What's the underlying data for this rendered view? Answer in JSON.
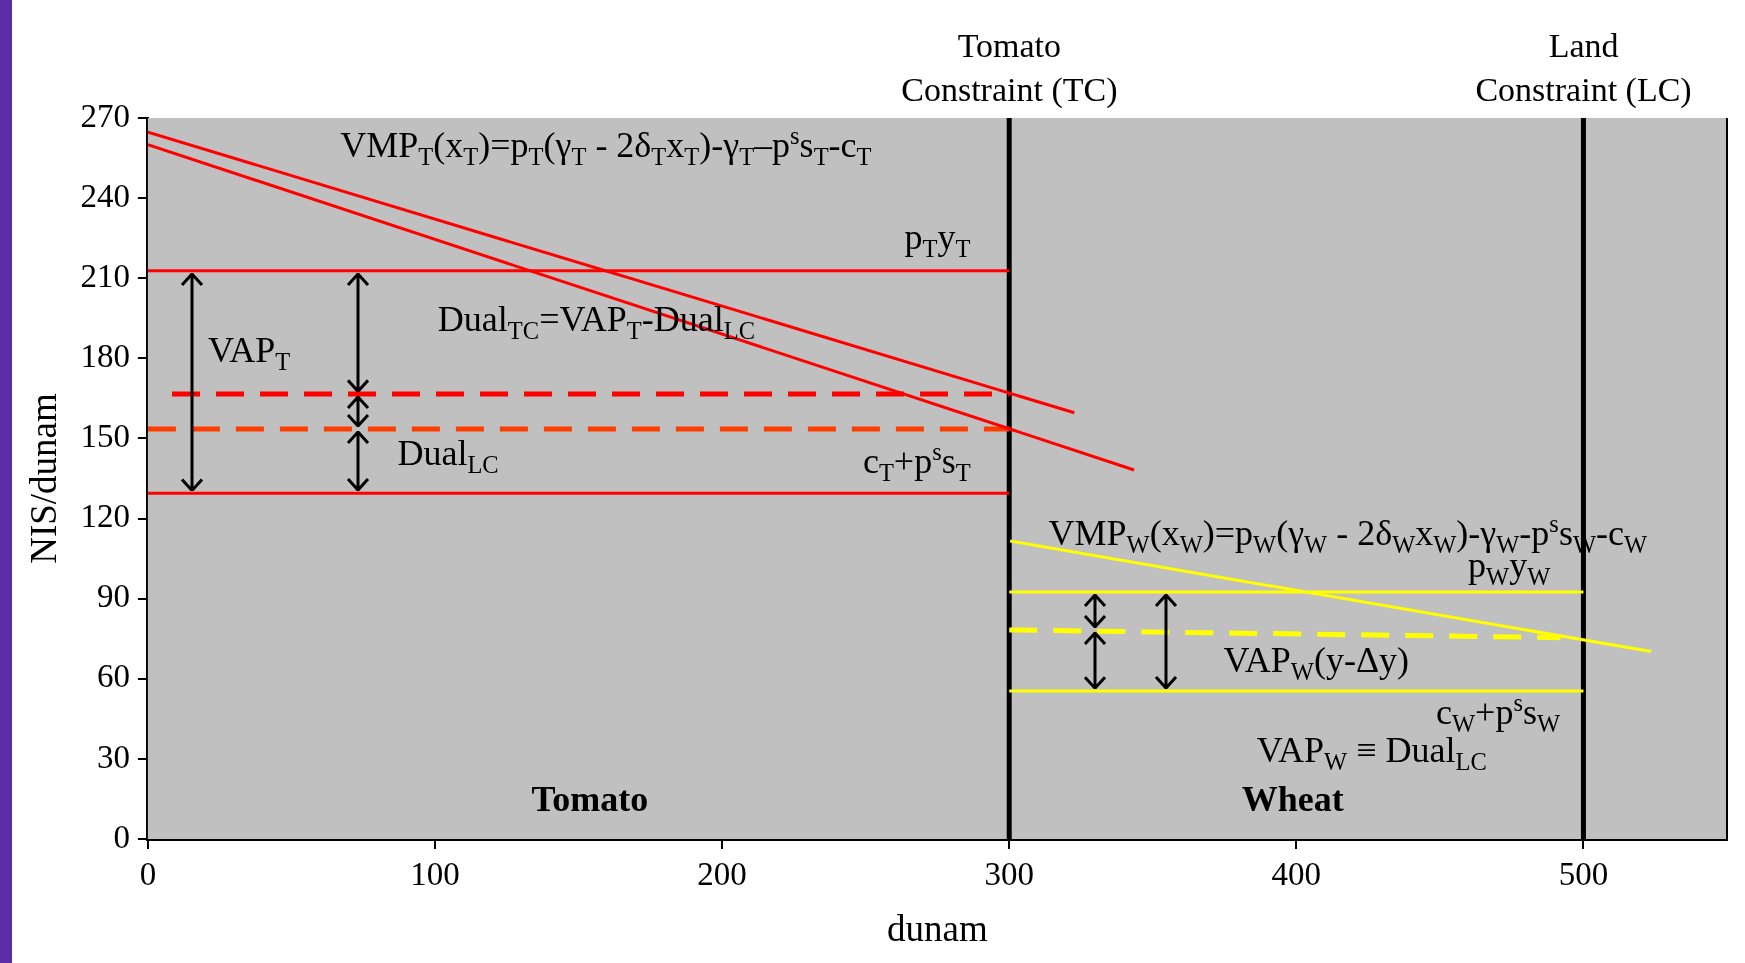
{
  "chart_data": {
    "type": "line",
    "xlabel": "dunam",
    "ylabel": "NIS/dunam",
    "xlim": [
      0,
      550
    ],
    "xticks": [
      0,
      100,
      200,
      300,
      400,
      500
    ],
    "ylim": [
      0,
      270
    ],
    "yticks": [
      0,
      30,
      60,
      90,
      120,
      150,
      180,
      210,
      240,
      270
    ],
    "grid": false,
    "legend": false,
    "marker": "none",
    "series": [
      {
        "color": "#ff0000",
        "x": [
          0,
          322.7
        ],
        "values": [
          264.7,
          159.6
        ]
      },
      {
        "color": "#ff0000",
        "x": [
          0,
          343.5
        ],
        "values": [
          260,
          138.2
        ]
      },
      {
        "color": "#ff0000",
        "x": [
          0,
          300
        ],
        "values": [
          212.8,
          212.8
        ]
      },
      {
        "color": "#ff0000",
        "line_style": "dashed",
        "x": [
          8.4,
          300
        ],
        "values": [
          166.6,
          166.6
        ]
      },
      {
        "color": "#ff3c00",
        "line_style": "dashed",
        "x": [
          0,
          300
        ],
        "values": [
          153.5,
          153.5
        ]
      },
      {
        "color": "#ff0000",
        "x": [
          0,
          300
        ],
        "values": [
          129.5,
          129.5
        ]
      },
      {
        "color": "#ffff00",
        "x": [
          300.3,
          523.6
        ],
        "values": [
          111.6,
          70.2
        ]
      },
      {
        "color": "#ffff00",
        "x": [
          300,
          500
        ],
        "values": [
          92.5,
          92.5
        ]
      },
      {
        "color": "#ffff00",
        "line_style": "dashed",
        "x": [
          300,
          492
        ],
        "values": [
          78.3,
          75.4
        ]
      },
      {
        "color": "#ffff00",
        "x": [
          300,
          500
        ],
        "values": [
          55.4,
          55.4
        ]
      }
    ],
    "ref_lines": [
      {
        "axis": "x",
        "value": 300,
        "label": "Tomato Constraint (TC)",
        "color": "#000000"
      },
      {
        "axis": "x",
        "value": 500,
        "label": "Land Constraint (LC)",
        "color": "#000000"
      }
    ],
    "annotations": [
      "VMP$_{T}$(x$_{T}$)=p$_{T}$(γ$_{T}$ - 2δ$_{T}$x$_{T}$)-γ$_{T}$–p$^{s}$s$_{T}$-c$_{T}$",
      "p$_{T}$y$_{T}$",
      "VAP$_{T}$",
      "Dual$_{TC}$=VAP$_{T}$-Dual$_{LC}$",
      "Dual$_{LC}$",
      "c$_{T}$+p$^{s}$s$_{T}$",
      "VMP$_{W}$(x$_{W}$)=p$_{W}$(γ$_{W}$ - 2δ$_{W}$x$_{W}$)-γ$_{W}$-p$^{s}$s$_{W}$-c$_{W}$",
      "p$_{W}$y$_{W}$",
      "VAP$_{W}$ ≡ Dual$_{LC}$",
      "VAP$_{W}$(y-Δy)",
      "c$_{W}$+p$^{s}$s$_{W}$",
      "Tomato",
      "Wheat"
    ]
  }
}
